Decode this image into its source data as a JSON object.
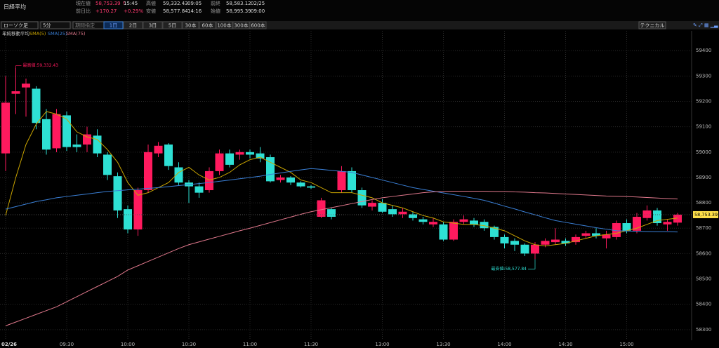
{
  "header": {
    "title": "日経平均",
    "quotes": [
      [
        "現在値",
        "58,753.39 ↑",
        "15:45"
      ],
      [
        "前日比",
        "+170.27",
        "+0.29%"
      ],
      [
        "高値",
        "59,332.43",
        "09:05"
      ],
      [
        "安値",
        "58,577.84",
        "14:16"
      ],
      [
        "前終",
        "58,583.12",
        "02/25"
      ],
      [
        "始値",
        "58,995.39",
        "09:00"
      ]
    ]
  },
  "toolbar": {
    "selects": [
      "ローソク足",
      "5分",
      "期間指定"
    ],
    "ranges": [
      "1日",
      "2日",
      "3日",
      "5日",
      "30本",
      "60本",
      "100本",
      "300本",
      "600本"
    ],
    "technical": "テクニカル"
  },
  "chart_data": {
    "type": "candlestick",
    "legend_title": "単純移動平均",
    "categories": [
      "02/26",
      null,
      null,
      null,
      null,
      null,
      "09:30",
      null,
      null,
      null,
      null,
      null,
      "10:00",
      null,
      null,
      null,
      null,
      null,
      "10:30",
      null,
      null,
      null,
      null,
      null,
      "11:00",
      null,
      null,
      null,
      null,
      null,
      "11:30",
      null,
      null,
      null,
      null,
      null,
      null,
      "13:00",
      null,
      null,
      null,
      null,
      null,
      "13:30",
      null,
      null,
      null,
      null,
      null,
      "14:00",
      null,
      null,
      null,
      null,
      null,
      "14:30",
      null,
      null,
      null,
      null,
      null,
      "15:00",
      null,
      null,
      null,
      null,
      null
    ],
    "open": [
      58995,
      59230,
      59255,
      59250,
      59130,
      59015,
      59145,
      59030,
      59030,
      59065,
      58990,
      58905,
      58775,
      58695,
      58850,
      58995,
      59030,
      58940,
      58880,
      58865,
      58850,
      58925,
      58995,
      58990,
      59000,
      58995,
      58980,
      58890,
      58900,
      58880,
      58865,
      58745,
      58775,
      58850,
      58925,
      58850,
      58785,
      58800,
      58775,
      58755,
      58755,
      58735,
      58715,
      58715,
      58655,
      58725,
      58730,
      58725,
      58705,
      58665,
      58650,
      58635,
      58600,
      58635,
      58645,
      58650,
      58645,
      58670,
      58680,
      58660,
      58665,
      58720,
      58690,
      58740,
      58770,
      58715,
      58722
    ],
    "high": [
      59300,
      59332.43,
      59290,
      59260,
      59170,
      59170,
      59160,
      59070,
      59100,
      59090,
      59000,
      58920,
      58790,
      58860,
      59030,
      59040,
      59035,
      58960,
      58890,
      58880,
      58940,
      59010,
      59010,
      59010,
      59010,
      59020,
      58990,
      58910,
      58905,
      58885,
      58870,
      58820,
      58780,
      58945,
      58940,
      58860,
      58810,
      58815,
      58790,
      58780,
      58765,
      58745,
      58740,
      58725,
      58735,
      58750,
      58740,
      58735,
      58710,
      58675,
      58660,
      58640,
      58645,
      58660,
      58700,
      58660,
      58675,
      58690,
      58700,
      58690,
      58730,
      58735,
      58760,
      58790,
      58780,
      58735,
      58760
    ],
    "low": [
      58925,
      59150,
      59140,
      59090,
      58990,
      59000,
      59005,
      59000,
      59000,
      58980,
      58890,
      58740,
      58680,
      58670,
      58840,
      58980,
      58930,
      58870,
      58800,
      58820,
      58840,
      58910,
      58940,
      58970,
      58975,
      58960,
      58880,
      58880,
      58870,
      58860,
      58855,
      58740,
      58735,
      58840,
      58840,
      58780,
      58770,
      58760,
      58745,
      58740,
      58730,
      58715,
      58705,
      58650,
      58650,
      58715,
      58705,
      58690,
      58655,
      58620,
      58610,
      58590,
      58577.84,
      58625,
      58635,
      58630,
      58635,
      58660,
      58660,
      58620,
      58655,
      58680,
      58680,
      58730,
      58710,
      58690,
      58710
    ],
    "close": [
      59195,
      59240,
      59270,
      59115,
      59010,
      59150,
      59020,
      59020,
      59070,
      58995,
      58910,
      58770,
      58695,
      58850,
      59000,
      59025,
      58945,
      58880,
      58865,
      58840,
      58925,
      58995,
      58950,
      59000,
      58990,
      58975,
      58885,
      58900,
      58880,
      58865,
      58860,
      58810,
      58745,
      58925,
      58850,
      58790,
      58800,
      58765,
      58755,
      58765,
      58740,
      58725,
      58725,
      58655,
      58725,
      58735,
      58715,
      58700,
      58665,
      58640,
      58635,
      58600,
      58635,
      58650,
      58655,
      58640,
      58665,
      58680,
      58670,
      58675,
      58720,
      58690,
      58745,
      58770,
      58720,
      58725,
      58753.39
    ],
    "up_color": "#ff1a5e",
    "down_color": "#2ee0d4",
    "series": [
      {
        "name": "SMA(5)",
        "color": "#c9a400",
        "values": [
          58750,
          58900,
          59030,
          59110,
          59160,
          59150,
          59130,
          59080,
          59060,
          59050,
          59010,
          58960,
          58880,
          58830,
          58840,
          58860,
          58880,
          58920,
          58940,
          58910,
          58890,
          58900,
          58920,
          58950,
          58970,
          58980,
          58960,
          58940,
          58920,
          58890,
          58880,
          58860,
          58840,
          58840,
          58840,
          58830,
          58820,
          58800,
          58790,
          58780,
          58765,
          58750,
          58740,
          58725,
          58720,
          58715,
          58715,
          58710,
          58700,
          58690,
          58670,
          58650,
          58635,
          58630,
          58635,
          58640,
          58650,
          58660,
          58670,
          58675,
          58680,
          58690,
          58700,
          58715,
          58730,
          58735,
          58740
        ]
      },
      {
        "name": "SMA(25)",
        "color": "#3a7fd5",
        "values": [
          58775,
          58785,
          58795,
          58805,
          58812,
          58820,
          58825,
          58830,
          58835,
          58840,
          58845,
          58848,
          58851,
          58854,
          58857,
          58860,
          58864,
          58868,
          58872,
          58876,
          58880,
          58885,
          58890,
          58895,
          58900,
          58905,
          58912,
          58918,
          58924,
          58930,
          58935,
          58932,
          58928,
          58924,
          58920,
          58910,
          58900,
          58890,
          58880,
          58870,
          58860,
          58853,
          58846,
          58839,
          58832,
          58825,
          58818,
          58810,
          58799,
          58787,
          58776,
          58764,
          58753,
          58741,
          58730,
          58723,
          58716,
          58709,
          58702,
          58696,
          58690,
          58689,
          58688,
          58687,
          58686,
          58686,
          58685
        ]
      },
      {
        "name": "SMA(75)",
        "color": "#e0788c",
        "values": [
          58315,
          58330,
          58345,
          58360,
          58375,
          58390,
          58410,
          58430,
          58450,
          58470,
          58490,
          58510,
          58535,
          58552,
          58569,
          58586,
          58603,
          58620,
          58635,
          58646,
          58657,
          58668,
          58679,
          58690,
          58700,
          58711,
          58722,
          58733,
          58744,
          58755,
          58765,
          58773,
          58781,
          58789,
          58797,
          58805,
          58813,
          58820,
          58825,
          58830,
          58835,
          58840,
          58843,
          58845,
          58846,
          58846,
          58846,
          58846,
          58845,
          58845,
          58843,
          58842,
          58840,
          58839,
          58837,
          58835,
          58833,
          58831,
          58829,
          58827,
          58826,
          58825,
          58823,
          58821,
          58819,
          58817,
          58815
        ]
      }
    ],
    "annotations": [
      {
        "value": 59332.43,
        "label": "最高値:59,332.43"
      },
      {
        "value": 58577.84,
        "label": "最安値:58,577.84"
      }
    ],
    "last_price": {
      "value": 58753.39,
      "label": "58,753.39"
    },
    "ylim": [
      58258,
      59456
    ],
    "yticks": [
      58300,
      58400,
      58500,
      58600,
      58700,
      58800,
      58900,
      59000,
      59100,
      59200,
      59300,
      59400
    ],
    "grid": true
  }
}
